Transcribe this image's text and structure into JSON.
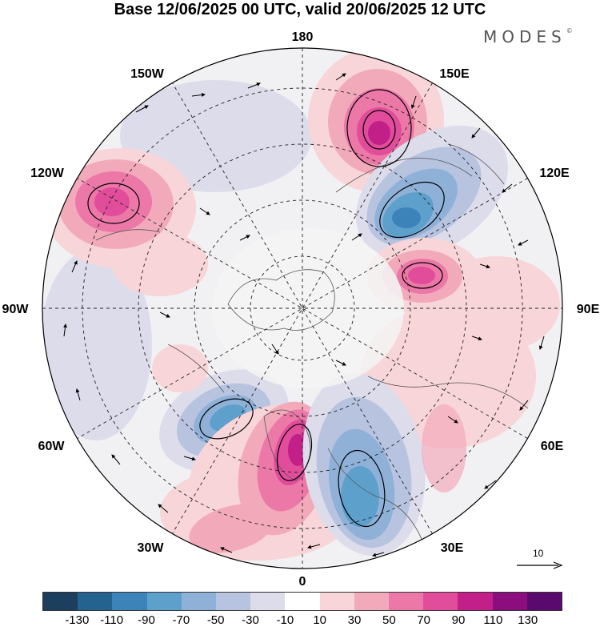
{
  "title": "Base 12/06/2025 00 UTC, valid 20/06/2025 12 UTC",
  "brand": "MODES",
  "brand_mark": "©",
  "longitude_labels": {
    "deg180": "180",
    "deg150e": "150E",
    "deg120e": "120E",
    "deg90e": "90E",
    "deg60e": "60E",
    "deg30e": "30E",
    "deg0": "0",
    "deg30w": "30W",
    "deg60w": "60W",
    "deg90w": "90W",
    "deg120w": "120W",
    "deg150w": "150W"
  },
  "vector_scale": {
    "label": "10"
  },
  "colorbar": {
    "colors": [
      "#1d3f5e",
      "#24628f",
      "#3b83b8",
      "#5ea0cc",
      "#8fb1d8",
      "#b7c3df",
      "#dcdceb",
      "#ffffff",
      "#f8d5d8",
      "#f2aabb",
      "#ec78a8",
      "#e14c9b",
      "#c21f89",
      "#8c0e7e",
      "#5a0a6e"
    ],
    "ticks": [
      "-130",
      "-110",
      "-90",
      "-70",
      "-50",
      "-30",
      "-10",
      "10",
      "30",
      "50",
      "70",
      "90",
      "110",
      "130"
    ]
  },
  "anomaly_centers": [
    {
      "region": "North Pacific (near 160E)",
      "sign": "positive",
      "level": 110
    },
    {
      "region": "Northeast Asia (near 120E)",
      "sign": "negative",
      "level": -90
    },
    {
      "region": "Central Siberia (near 90E)",
      "sign": "positive",
      "level": 90
    },
    {
      "region": "Alaska / NW Canada (near 130W)",
      "sign": "positive",
      "level": 90
    },
    {
      "region": "Eastern Canada (near 45W)",
      "sign": "negative",
      "level": -90
    },
    {
      "region": "Greenland / North Atlantic (near 10W)",
      "sign": "positive",
      "level": 110
    },
    {
      "region": "Europe / Scandinavia (near 20E)",
      "sign": "negative",
      "level": -70
    }
  ]
}
